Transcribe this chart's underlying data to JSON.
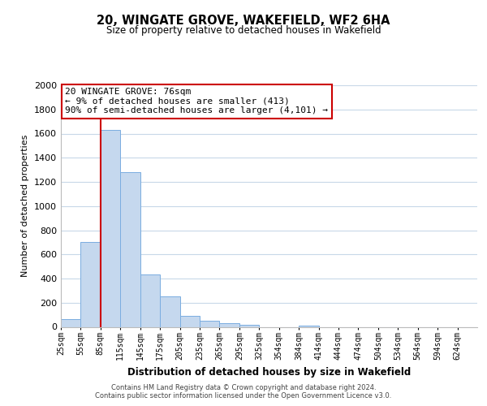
{
  "title": "20, WINGATE GROVE, WAKEFIELD, WF2 6HA",
  "subtitle": "Size of property relative to detached houses in Wakefield",
  "xlabel": "Distribution of detached houses by size in Wakefield",
  "ylabel": "Number of detached properties",
  "bar_labels": [
    "25sqm",
    "55sqm",
    "85sqm",
    "115sqm",
    "145sqm",
    "175sqm",
    "205sqm",
    "235sqm",
    "265sqm",
    "295sqm",
    "325sqm",
    "354sqm",
    "384sqm",
    "414sqm",
    "444sqm",
    "474sqm",
    "504sqm",
    "534sqm",
    "564sqm",
    "594sqm",
    "624sqm"
  ],
  "bar_values": [
    65,
    700,
    1630,
    1280,
    435,
    250,
    90,
    50,
    30,
    20,
    0,
    0,
    10,
    0,
    0,
    0,
    0,
    0,
    0,
    0,
    0
  ],
  "bar_color": "#c5d8ee",
  "bar_edge_color": "#7aade0",
  "property_line_color": "#cc0000",
  "annotation_line1": "20 WINGATE GROVE: 76sqm",
  "annotation_line2": "← 9% of detached houses are smaller (413)",
  "annotation_line3": "90% of semi-detached houses are larger (4,101) →",
  "annotation_box_color": "#ffffff",
  "annotation_box_edgecolor": "#cc0000",
  "ylim": [
    0,
    2000
  ],
  "yticks": [
    0,
    200,
    400,
    600,
    800,
    1000,
    1200,
    1400,
    1600,
    1800,
    2000
  ],
  "footer_line1": "Contains HM Land Registry data © Crown copyright and database right 2024.",
  "footer_line2": "Contains public sector information licensed under the Open Government Licence v3.0.",
  "background_color": "#ffffff",
  "grid_color": "#c8d8e8"
}
